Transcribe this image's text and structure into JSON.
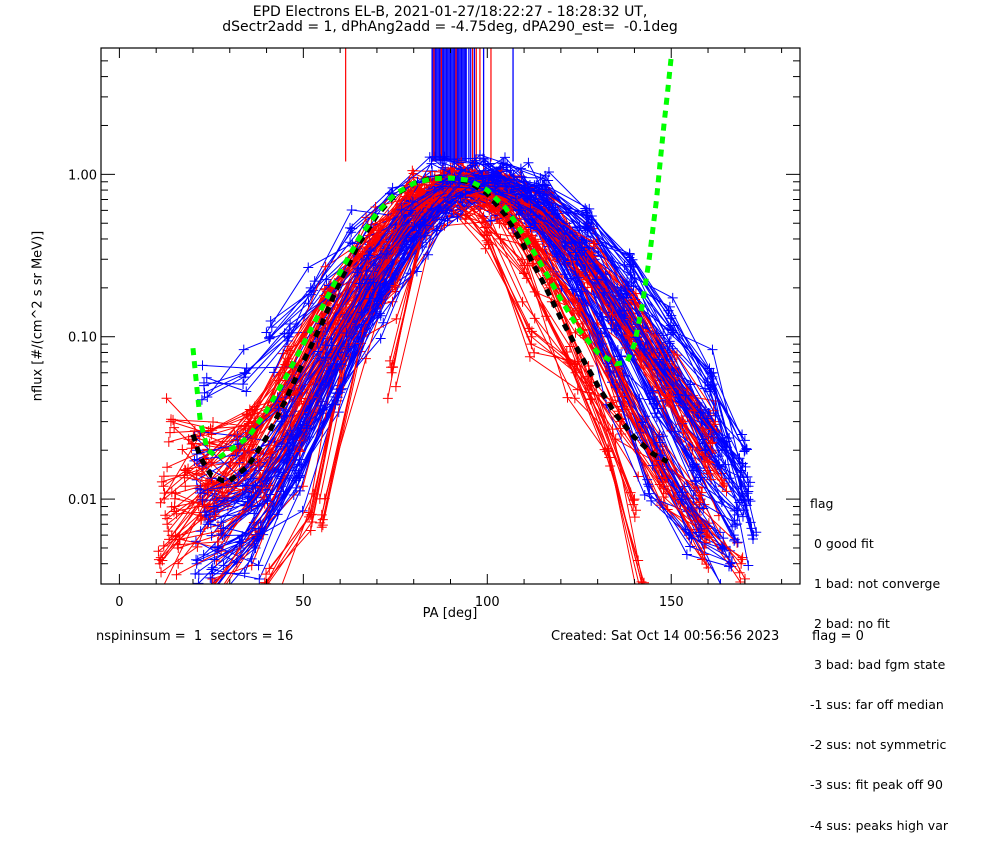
{
  "chart_data": {
    "type": "line",
    "title": "EPD Electrons EL-B, 2021-01-27/18:22:27 - 18:28:32 UT,",
    "subtitle": "dSectr2add = 1, dPhAng2add = -4.75deg, dPA290_est=  -0.1deg",
    "xlabel": "PA [deg]",
    "ylabel": "nflux [#/(cm^2 s sr MeV)]",
    "xlim": [
      -5,
      185
    ],
    "ylim": [
      0.003,
      6.0
    ],
    "yscale": "log",
    "grid": false,
    "x_ticks": [
      {
        "value": 0,
        "label": "0"
      },
      {
        "value": 50,
        "label": "50"
      },
      {
        "value": 100,
        "label": "100"
      },
      {
        "value": 150,
        "label": "150"
      }
    ],
    "x_minor_step": 10,
    "y_ticks": [
      {
        "value": 0.01,
        "label": "0.01"
      },
      {
        "value": 0.1,
        "label": "0.10"
      },
      {
        "value": 1.0,
        "label": "1.00"
      }
    ],
    "legend": {
      "placement": "right",
      "title": "flag",
      "entries": [
        " 0 good fit",
        " 1 bad: not converge",
        " 2 bad: no fit",
        " 3 bad: bad fgm state",
        "-1 sus: far off median",
        "-2 sus: not symmetric",
        "-3 sus: fit peak off 90",
        "-4 sus: peaks high var"
      ]
    },
    "colors": {
      "series_a": "#ff0000",
      "series_b": "#0000ff",
      "fit_green": "#00ff00",
      "fit_black": "#000000"
    },
    "peak_markers": {
      "ymin": 1.2,
      "ymax": 6.0,
      "red": [
        61.5,
        85.5,
        87.5,
        91.5,
        96,
        97,
        98,
        101
      ],
      "blue": [
        85,
        86,
        87,
        88,
        89,
        90,
        91,
        92,
        93,
        94,
        95,
        95.5,
        96.5,
        99,
        107
      ]
    },
    "fit_curves": [
      {
        "name": "green-fit",
        "color": "#00ff00",
        "style": "dashed",
        "x": [
          20,
          21,
          22,
          24,
          27,
          30,
          35,
          40,
          45,
          50,
          55,
          60,
          65,
          70,
          75,
          80,
          85,
          90,
          95,
          100,
          105,
          110,
          115,
          120,
          125,
          130,
          135,
          138,
          140,
          142,
          144,
          146,
          147,
          148,
          149,
          150
        ],
        "y": [
          0.085,
          0.05,
          0.03,
          0.02,
          0.018,
          0.02,
          0.024,
          0.035,
          0.055,
          0.09,
          0.15,
          0.25,
          0.4,
          0.58,
          0.76,
          0.88,
          0.94,
          0.95,
          0.92,
          0.8,
          0.62,
          0.42,
          0.27,
          0.17,
          0.11,
          0.08,
          0.068,
          0.07,
          0.09,
          0.15,
          0.3,
          0.7,
          1.2,
          2.0,
          3.2,
          5.3
        ]
      },
      {
        "name": "black-fit",
        "color": "#000000",
        "style": "dashed",
        "x": [
          20,
          22,
          25,
          28,
          30,
          35,
          40,
          45,
          50,
          55,
          60,
          65,
          70,
          75,
          80,
          85,
          90,
          95,
          100,
          105,
          110,
          115,
          120,
          125,
          130,
          135,
          140,
          145,
          149
        ],
        "y": [
          0.025,
          0.018,
          0.014,
          0.013,
          0.013,
          0.016,
          0.024,
          0.04,
          0.07,
          0.12,
          0.22,
          0.37,
          0.56,
          0.75,
          0.88,
          0.95,
          0.95,
          0.9,
          0.76,
          0.56,
          0.36,
          0.22,
          0.13,
          0.08,
          0.05,
          0.033,
          0.024,
          0.019,
          0.017
        ]
      }
    ],
    "series": [
      {
        "name": "red-01",
        "color": "#ff0000",
        "x": [
          11,
          22,
          34,
          45,
          56,
          68,
          79,
          90,
          101,
          112,
          124,
          135,
          146,
          157,
          169
        ],
        "y": [
          0.004,
          0.008,
          0.02,
          0.06,
          0.17,
          0.42,
          0.78,
          0.9,
          0.72,
          0.42,
          0.17,
          0.06,
          0.02,
          0.008,
          0.004
        ]
      },
      {
        "name": "red-02",
        "color": "#ff0000",
        "x": [
          12,
          23,
          35,
          46,
          57,
          69,
          80,
          91,
          102,
          113,
          125,
          136,
          147,
          158
        ],
        "y": [
          0.012,
          0.018,
          0.03,
          0.07,
          0.2,
          0.45,
          0.8,
          0.88,
          0.66,
          0.36,
          0.14,
          0.05,
          0.018,
          0.01
        ]
      },
      {
        "name": "red-03",
        "color": "#ff0000",
        "x": [
          14,
          25,
          37,
          48,
          59,
          71,
          82,
          93,
          104,
          115,
          127,
          138,
          149,
          160
        ],
        "y": [
          0.03,
          0.025,
          0.03,
          0.05,
          0.14,
          0.36,
          0.7,
          0.86,
          0.75,
          0.5,
          0.25,
          0.1,
          0.04,
          0.015
        ]
      },
      {
        "name": "red-04",
        "color": "#ff0000",
        "x": [
          16,
          27,
          39,
          50,
          61,
          73,
          84,
          95,
          106,
          117,
          129,
          140,
          151,
          162
        ],
        "y": [
          0.005,
          0.006,
          0.012,
          0.035,
          0.11,
          0.32,
          0.68,
          0.84,
          0.8,
          0.6,
          0.35,
          0.16,
          0.06,
          0.03
        ]
      },
      {
        "name": "red-05",
        "color": "#ff0000",
        "x": [
          18,
          29,
          41,
          52,
          63,
          75,
          86,
          97,
          108,
          119,
          131,
          142,
          153,
          164
        ],
        "y": [
          0.015,
          0.012,
          0.018,
          0.045,
          0.13,
          0.33,
          0.66,
          0.82,
          0.72,
          0.45,
          0.2,
          0.08,
          0.03,
          0.012
        ]
      },
      {
        "name": "red-06",
        "color": "#ff0000",
        "x": [
          13,
          24,
          36,
          47,
          58,
          70,
          81,
          92,
          103,
          114,
          126,
          137,
          148,
          159
        ],
        "y": [
          0.007,
          0.011,
          0.024,
          0.06,
          0.18,
          0.4,
          0.75,
          0.85,
          0.6,
          0.3,
          0.12,
          0.04,
          0.012,
          0.005
        ]
      },
      {
        "name": "red-07",
        "color": "#ff0000",
        "x": [
          40,
          52,
          62,
          75,
          88,
          100,
          112,
          124,
          136,
          148,
          160
        ],
        "y": [
          0.003,
          0.008,
          0.1,
          0.19,
          0.75,
          0.42,
          0.1,
          0.06,
          0.03,
          0.012,
          0.006
        ]
      },
      {
        "name": "red-08",
        "color": "#ff0000",
        "x": [
          55,
          66,
          77,
          88,
          99,
          110,
          122,
          133,
          142
        ],
        "y": [
          0.008,
          0.1,
          0.55,
          0.75,
          0.55,
          0.25,
          0.07,
          0.02,
          0.003
        ]
      },
      {
        "name": "red-09",
        "color": "#ff0000",
        "x": [
          20,
          32,
          44,
          55,
          66,
          78,
          89,
          100,
          111,
          123,
          134,
          145,
          156
        ],
        "y": [
          0.022,
          0.02,
          0.04,
          0.1,
          0.3,
          0.65,
          0.86,
          0.8,
          0.58,
          0.32,
          0.14,
          0.07,
          0.035
        ]
      },
      {
        "name": "red-10",
        "color": "#ff0000",
        "x": [
          15,
          26,
          38,
          49,
          60,
          72,
          83,
          94,
          105,
          116,
          128,
          139,
          150,
          161
        ],
        "y": [
          0.009,
          0.01,
          0.015,
          0.04,
          0.12,
          0.35,
          0.72,
          0.88,
          0.78,
          0.55,
          0.3,
          0.14,
          0.06,
          0.025
        ]
      },
      {
        "name": "red-11",
        "color": "#ff0000",
        "x": [
          26,
          37,
          49,
          60,
          71,
          83,
          94,
          105,
          116,
          127,
          139,
          150,
          161
        ],
        "y": [
          0.003,
          0.006,
          0.02,
          0.08,
          0.27,
          0.62,
          0.86,
          0.78,
          0.52,
          0.27,
          0.12,
          0.05,
          0.02
        ]
      },
      {
        "name": "red-12",
        "color": "#ff0000",
        "x": [
          74,
          85,
          96,
          106,
          117,
          128,
          140
        ],
        "y": [
          0.06,
          0.8,
          0.9,
          0.6,
          0.2,
          0.05,
          0.01
        ]
      },
      {
        "name": "blue-01",
        "color": "#0000ff",
        "x": [
          23,
          34,
          46,
          57,
          68,
          80,
          91,
          102,
          113,
          125,
          136,
          147,
          158,
          169
        ],
        "y": [
          0.05,
          0.06,
          0.1,
          0.18,
          0.35,
          0.65,
          0.88,
          0.85,
          0.6,
          0.35,
          0.17,
          0.08,
          0.035,
          0.015
        ]
      },
      {
        "name": "blue-02",
        "color": "#0000ff",
        "x": [
          21,
          33,
          44,
          55,
          66,
          78,
          89,
          100,
          111,
          123,
          134,
          145,
          156,
          167
        ],
        "y": [
          0.004,
          0.005,
          0.012,
          0.04,
          0.13,
          0.37,
          0.75,
          0.9,
          0.72,
          0.38,
          0.14,
          0.045,
          0.015,
          0.006
        ]
      },
      {
        "name": "blue-03",
        "color": "#0000ff",
        "x": [
          24,
          36,
          47,
          58,
          69,
          81,
          92,
          103,
          114,
          126,
          137,
          148,
          159,
          170
        ],
        "y": [
          0.007,
          0.01,
          0.025,
          0.08,
          0.22,
          0.5,
          0.85,
          0.9,
          0.7,
          0.38,
          0.16,
          0.06,
          0.022,
          0.01
        ]
      },
      {
        "name": "blue-04",
        "color": "#0000ff",
        "x": [
          22,
          34,
          45,
          56,
          67,
          79,
          90,
          101,
          112,
          124,
          135,
          146,
          157,
          168
        ],
        "y": [
          0.012,
          0.014,
          0.03,
          0.08,
          0.24,
          0.55,
          0.87,
          0.88,
          0.62,
          0.3,
          0.11,
          0.04,
          0.015,
          0.008
        ]
      },
      {
        "name": "blue-05",
        "color": "#0000ff",
        "x": [
          25,
          37,
          48,
          59,
          70,
          82,
          93,
          104,
          115,
          127,
          138,
          149,
          160,
          171
        ],
        "y": [
          0.003,
          0.005,
          0.013,
          0.045,
          0.15,
          0.42,
          0.8,
          0.92,
          0.8,
          0.5,
          0.22,
          0.08,
          0.03,
          0.012
        ]
      },
      {
        "name": "blue-06",
        "color": "#0000ff",
        "x": [
          41,
          52,
          63,
          74,
          85,
          97,
          108,
          119,
          131,
          142,
          153,
          164
        ],
        "y": [
          0.1,
          0.2,
          0.44,
          0.7,
          1.05,
          0.95,
          0.65,
          0.3,
          0.1,
          0.03,
          0.01,
          0.005
        ]
      },
      {
        "name": "blue-07",
        "color": "#0000ff",
        "x": [
          21,
          32,
          43,
          54,
          65,
          77,
          88,
          99,
          110,
          121,
          132,
          143,
          154,
          165
        ],
        "y": [
          0.02,
          0.02,
          0.035,
          0.09,
          0.25,
          0.55,
          0.86,
          0.9,
          0.7,
          0.42,
          0.2,
          0.09,
          0.04,
          0.02
        ]
      },
      {
        "name": "blue-08",
        "color": "#0000ff",
        "x": [
          28,
          40,
          51,
          62,
          73,
          85,
          96,
          107,
          118,
          130,
          141,
          152,
          163
        ],
        "y": [
          0.006,
          0.01,
          0.03,
          0.1,
          0.3,
          0.66,
          0.92,
          0.85,
          0.55,
          0.25,
          0.1,
          0.04,
          0.016
        ]
      },
      {
        "name": "blue-09",
        "color": "#0000ff",
        "x": [
          23,
          35,
          46,
          57,
          68,
          80,
          91,
          102,
          113,
          125,
          136,
          147,
          158
        ],
        "y": [
          0.009,
          0.011,
          0.02,
          0.06,
          0.19,
          0.48,
          0.84,
          0.86,
          0.55,
          0.22,
          0.07,
          0.02,
          0.007
        ]
      },
      {
        "name": "blue-10",
        "color": "#0000ff",
        "x": [
          26,
          38,
          49,
          60,
          71,
          83,
          94,
          105,
          116,
          128,
          139,
          150,
          161,
          170
        ],
        "y": [
          0.005,
          0.006,
          0.014,
          0.05,
          0.16,
          0.45,
          0.82,
          0.9,
          0.74,
          0.46,
          0.24,
          0.11,
          0.05,
          0.02
        ]
      },
      {
        "name": "blue-11",
        "color": "#0000ff",
        "x": [
          88,
          99,
          110,
          121,
          133,
          144,
          155,
          166
        ],
        "y": [
          1.1,
          1.05,
          0.9,
          0.35,
          0.06,
          0.012,
          0.006,
          0.004
        ]
      },
      {
        "name": "blue-12",
        "color": "#0000ff",
        "x": [
          26,
          37,
          49,
          60,
          71,
          83,
          94,
          105,
          116,
          127,
          139,
          150,
          161,
          172
        ],
        "y": [
          0.01,
          0.012,
          0.025,
          0.07,
          0.2,
          0.5,
          0.85,
          0.95,
          0.8,
          0.5,
          0.27,
          0.13,
          0.06,
          0.006
        ]
      }
    ]
  },
  "footer": {
    "left": "nspininsum =  1  sectors = 16",
    "created": "Created: Sat Oct 14 00:56:56 2023",
    "flag": "flag = 0"
  }
}
